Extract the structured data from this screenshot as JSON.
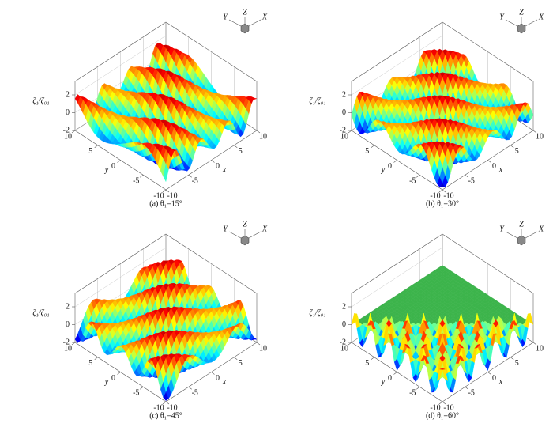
{
  "chart_data": [
    {
      "type": "surface3d",
      "caption": "(a) θ₁=15°",
      "zlabel": "ζ₁/ζ₀₁",
      "xlabel": "x",
      "ylabel": "y",
      "triad": [
        "Y",
        "Z",
        "X"
      ],
      "xlim": [
        -10,
        10
      ],
      "ylim": [
        -10,
        10
      ],
      "zlim": [
        -2,
        2
      ],
      "xticks": [
        -10,
        -5,
        0,
        5,
        10
      ],
      "yticks": [
        -10,
        -5,
        0,
        5,
        10
      ],
      "zticks": [
        -2,
        0,
        2
      ]
    },
    {
      "type": "surface3d",
      "caption": "(b) θ₁=30°",
      "zlabel": "ζ₁/ζ₀₁",
      "xlabel": "x",
      "ylabel": "y",
      "triad": [
        "Y",
        "Z",
        "X"
      ],
      "xlim": [
        -10,
        10
      ],
      "ylim": [
        -10,
        10
      ],
      "zlim": [
        -2,
        2
      ],
      "xticks": [
        -10,
        -5,
        0,
        5,
        10
      ],
      "yticks": [
        -10,
        -5,
        0,
        5,
        10
      ],
      "zticks": [
        -2,
        0,
        2
      ]
    },
    {
      "type": "surface3d",
      "caption": "(c) θ₁=45°",
      "zlabel": "ζ₁/ζ₀₁",
      "xlabel": "x",
      "ylabel": "y",
      "triad": [
        "Y",
        "Z",
        "X"
      ],
      "xlim": [
        -10,
        10
      ],
      "ylim": [
        -10,
        10
      ],
      "zlim": [
        -2,
        2
      ],
      "xticks": [
        -10,
        -5,
        0,
        5,
        10
      ],
      "yticks": [
        -10,
        -5,
        0,
        5,
        10
      ],
      "zticks": [
        -2,
        0,
        2
      ]
    },
    {
      "type": "surface3d",
      "caption": "(d) θ₁=60°",
      "zlabel": "ζ₁/ζ₀₁",
      "xlabel": "x",
      "ylabel": "y",
      "triad": [
        "Y",
        "Z",
        "X"
      ],
      "xlim": [
        -10,
        10
      ],
      "ylim": [
        -10,
        10
      ],
      "zlim": [
        -2,
        2
      ],
      "xticks": [
        -10,
        -5,
        0,
        5,
        10
      ],
      "yticks": [
        -10,
        -5,
        0,
        5,
        10
      ],
      "zticks": [
        -2,
        0,
        2
      ]
    }
  ]
}
